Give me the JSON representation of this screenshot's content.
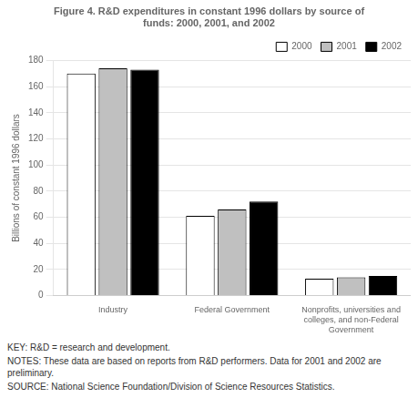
{
  "chart_data": {
    "type": "bar",
    "title": "Figure 4. R&D expenditures in constant 1996 dollars by source of\nfunds: 2000, 2001, and 2002",
    "ylabel": "Billions of constant 1996 dollars",
    "categories": [
      "Industry",
      "Federal Government",
      "Nonprofits, universities and\ncolleges, and non-Federal\nGovernment"
    ],
    "series": [
      {
        "name": "2000",
        "color": "#ffffff",
        "values": [
          170,
          61,
          13
        ]
      },
      {
        "name": "2001",
        "color": "#c0c0c0",
        "values": [
          174,
          66,
          14
        ]
      },
      {
        "name": "2002",
        "color": "#000000",
        "values": [
          173,
          72,
          15
        ]
      }
    ],
    "ylim": [
      0,
      180
    ],
    "yticks": [
      0,
      20,
      40,
      60,
      80,
      100,
      120,
      140,
      160,
      180
    ],
    "grid": true,
    "legend": "top",
    "annotations": [
      "KEY: R&D = research and development.",
      "NOTES: These data are based on reports from R&D performers. Data for 2001 and 2002 are preliminary.",
      "SOURCE: National Science Foundation/Division of Science Resources Statistics."
    ]
  }
}
